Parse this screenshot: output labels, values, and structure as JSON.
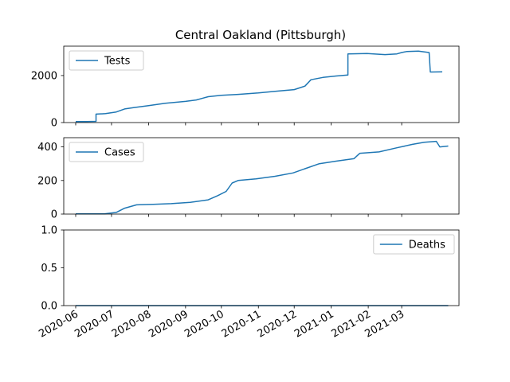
{
  "chart_data": {
    "type": "line",
    "title": "Central Oakland (Pittsburgh)",
    "color": "#1f77b4",
    "x_tick_labels": [
      "2020-06",
      "2020-07",
      "2020-08",
      "2020-09",
      "2020-10",
      "2020-11",
      "2020-12",
      "2021-01",
      "2021-02",
      "2021-03"
    ],
    "panels": [
      {
        "legend": "Tests",
        "legend_location": "upper left",
        "ylim": [
          0,
          3250
        ],
        "yticks": [
          0,
          2000
        ],
        "ytick_labels": [
          "0",
          "2000"
        ],
        "points": [
          [
            "2020-06-01",
            40
          ],
          [
            "2020-06-10",
            45
          ],
          [
            "2020-06-18",
            50
          ],
          [
            "2020-06-18",
            360
          ],
          [
            "2020-06-26",
            380
          ],
          [
            "2020-07-05",
            450
          ],
          [
            "2020-07-12",
            580
          ],
          [
            "2020-07-20",
            640
          ],
          [
            "2020-08-01",
            720
          ],
          [
            "2020-08-15",
            820
          ],
          [
            "2020-09-01",
            900
          ],
          [
            "2020-09-10",
            960
          ],
          [
            "2020-09-20",
            1100
          ],
          [
            "2020-10-01",
            1160
          ],
          [
            "2020-10-15",
            1200
          ],
          [
            "2020-11-01",
            1260
          ],
          [
            "2020-11-15",
            1330
          ],
          [
            "2020-12-01",
            1400
          ],
          [
            "2020-12-10",
            1550
          ],
          [
            "2020-12-15",
            1820
          ],
          [
            "2020-12-25",
            1920
          ],
          [
            "2021-01-05",
            1980
          ],
          [
            "2021-01-15",
            2020
          ],
          [
            "2021-01-15",
            2920
          ],
          [
            "2021-01-31",
            2940
          ],
          [
            "2021-02-15",
            2890
          ],
          [
            "2021-02-25",
            2920
          ],
          [
            "2021-03-01",
            2980
          ],
          [
            "2021-03-05",
            3020
          ],
          [
            "2021-03-15",
            3040
          ],
          [
            "2021-03-24",
            2980
          ],
          [
            "2021-03-25",
            2150
          ],
          [
            "2021-04-04",
            2160
          ]
        ]
      },
      {
        "legend": "Cases",
        "legend_location": "upper left",
        "ylim": [
          0,
          455
        ],
        "yticks": [
          0,
          200,
          400
        ],
        "ytick_labels": [
          "0",
          "200",
          "400"
        ],
        "points": [
          [
            "2020-06-01",
            1
          ],
          [
            "2020-06-25",
            1
          ],
          [
            "2020-07-05",
            10
          ],
          [
            "2020-07-12",
            35
          ],
          [
            "2020-07-22",
            55
          ],
          [
            "2020-08-05",
            58
          ],
          [
            "2020-08-20",
            62
          ],
          [
            "2020-09-05",
            70
          ],
          [
            "2020-09-20",
            85
          ],
          [
            "2020-09-28",
            110
          ],
          [
            "2020-10-05",
            135
          ],
          [
            "2020-10-10",
            185
          ],
          [
            "2020-10-15",
            200
          ],
          [
            "2020-10-30",
            210
          ],
          [
            "2020-11-15",
            225
          ],
          [
            "2020-11-30",
            245
          ],
          [
            "2020-12-10",
            270
          ],
          [
            "2020-12-22",
            300
          ],
          [
            "2021-01-05",
            315
          ],
          [
            "2021-01-20",
            330
          ],
          [
            "2021-01-25",
            362
          ],
          [
            "2021-02-10",
            370
          ],
          [
            "2021-02-25",
            395
          ],
          [
            "2021-03-10",
            415
          ],
          [
            "2021-03-20",
            428
          ],
          [
            "2021-03-30",
            433
          ],
          [
            "2021-04-02",
            400
          ],
          [
            "2021-04-09",
            405
          ]
        ]
      },
      {
        "legend": "Deaths",
        "legend_location": "upper right",
        "ylim": [
          0,
          1
        ],
        "yticks": [
          0,
          0.5,
          1
        ],
        "ytick_labels": [
          "0.0",
          "0.5",
          "1.0"
        ],
        "points": [
          [
            "2020-06-01",
            0
          ],
          [
            "2021-04-09",
            0
          ]
        ]
      }
    ]
  }
}
